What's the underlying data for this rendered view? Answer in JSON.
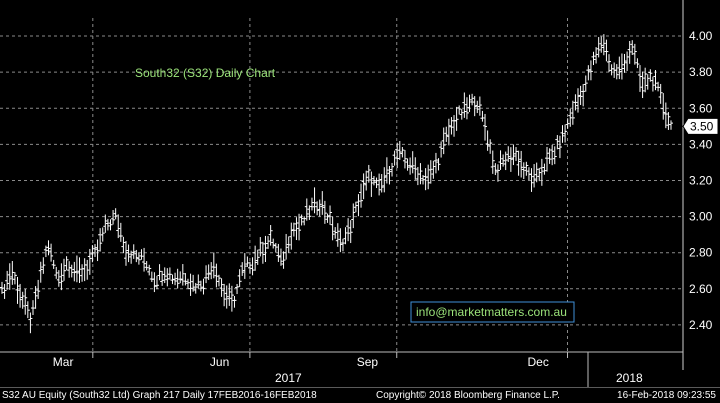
{
  "chart_data": {
    "type": "ohlc",
    "title": "South32 (S32) Daily Chart",
    "watermark": "info@marketmatters.com.au",
    "ylim": [
      2.25,
      4.1
    ],
    "y_ticks": [
      2.4,
      2.6,
      2.8,
      3.0,
      3.2,
      3.4,
      3.6,
      3.8,
      4.0
    ],
    "y_tick_labels": [
      "2.40",
      "2.60",
      "2.80",
      "3.00",
      "3.20",
      "3.40",
      "3.60",
      "3.80",
      "4.00"
    ],
    "last_price": 3.5,
    "last_price_label": "3.50",
    "x_range": [
      "2016-02-17",
      "2018-02-16"
    ],
    "month_labels": [
      "Mar",
      "Jun",
      "Sep",
      "Dec"
    ],
    "year_labels": [
      "2017",
      "2018"
    ],
    "grid": true,
    "colors": {
      "background": "#000000",
      "bars": "#ffffff",
      "grid": "#8a8a8a",
      "title": "#9be37a",
      "watermark_border": "#3f8fd8"
    },
    "series": [
      {
        "points": [
          [
            "2016-02-17",
            2.58
          ],
          [
            "2016-02-24",
            2.7
          ],
          [
            "2016-03-02",
            2.55
          ],
          [
            "2016-03-09",
            2.42
          ],
          [
            "2016-03-14",
            2.6
          ],
          [
            "2016-03-21",
            2.85
          ],
          [
            "2016-03-28",
            2.65
          ],
          [
            "2016-04-04",
            2.75
          ],
          [
            "2016-04-11",
            2.68
          ],
          [
            "2016-04-18",
            2.72
          ],
          [
            "2016-04-25",
            2.8
          ],
          [
            "2016-05-02",
            2.95
          ],
          [
            "2016-05-09",
            3.0
          ],
          [
            "2016-05-16",
            2.82
          ],
          [
            "2016-05-23",
            2.78
          ],
          [
            "2016-05-30",
            2.76
          ],
          [
            "2016-06-06",
            2.65
          ],
          [
            "2016-06-13",
            2.7
          ],
          [
            "2016-06-20",
            2.66
          ],
          [
            "2016-06-27",
            2.68
          ],
          [
            "2016-07-04",
            2.62
          ],
          [
            "2016-07-11",
            2.64
          ],
          [
            "2016-07-18",
            2.75
          ],
          [
            "2016-07-25",
            2.58
          ],
          [
            "2016-08-01",
            2.52
          ],
          [
            "2016-08-08",
            2.7
          ],
          [
            "2016-08-15",
            2.75
          ],
          [
            "2016-08-22",
            2.82
          ],
          [
            "2016-08-29",
            2.88
          ],
          [
            "2016-09-05",
            2.74
          ],
          [
            "2016-09-12",
            2.92
          ],
          [
            "2016-09-19",
            2.95
          ],
          [
            "2016-09-26",
            3.05
          ],
          [
            "2016-10-03",
            3.08
          ],
          [
            "2016-10-10",
            2.98
          ],
          [
            "2016-10-17",
            2.85
          ],
          [
            "2016-10-24",
            2.92
          ],
          [
            "2016-10-31",
            3.1
          ],
          [
            "2016-11-07",
            3.22
          ],
          [
            "2016-11-14",
            3.15
          ],
          [
            "2016-11-21",
            3.25
          ],
          [
            "2016-11-28",
            3.35
          ],
          [
            "2016-12-05",
            3.3
          ],
          [
            "2016-12-12",
            3.25
          ],
          [
            "2016-12-19",
            3.2
          ],
          [
            "2016-12-26",
            3.3
          ],
          [
            "2017-01-02",
            3.45
          ],
          [
            "2017-01-09",
            3.55
          ],
          [
            "2017-01-16",
            3.6
          ],
          [
            "2017-01-23",
            3.65
          ],
          [
            "2017-01-30",
            3.48
          ],
          [
            "2017-02-06",
            3.25
          ],
          [
            "2017-02-13",
            3.32
          ],
          [
            "2017-02-20",
            3.35
          ],
          [
            "2017-02-27",
            3.25
          ],
          [
            "2017-03-06",
            3.2
          ],
          [
            "2017-03-13",
            3.28
          ],
          [
            "2017-03-20",
            3.35
          ],
          [
            "2017-03-27",
            3.45
          ],
          [
            "2017-04-03",
            3.6
          ],
          [
            "2017-04-10",
            3.7
          ],
          [
            "2017-04-17",
            3.85
          ],
          [
            "2017-04-24",
            3.98
          ],
          [
            "2017-05-01",
            3.8
          ],
          [
            "2017-05-08",
            3.82
          ],
          [
            "2017-05-15",
            3.95
          ],
          [
            "2017-05-22",
            3.72
          ],
          [
            "2017-05-29",
            3.78
          ],
          [
            "2017-06-05",
            3.65
          ],
          [
            "2017-06-12",
            3.5
          ]
        ]
      }
    ]
  },
  "footer": {
    "left": "S32 AU Equity (South32 Ltd) Graph 217  Daily 17FEB2016-16FEB2018",
    "middle": "Copyright© 2018 Bloomberg Finance L.P.",
    "right": "16-Feb-2018 09:23:55"
  }
}
